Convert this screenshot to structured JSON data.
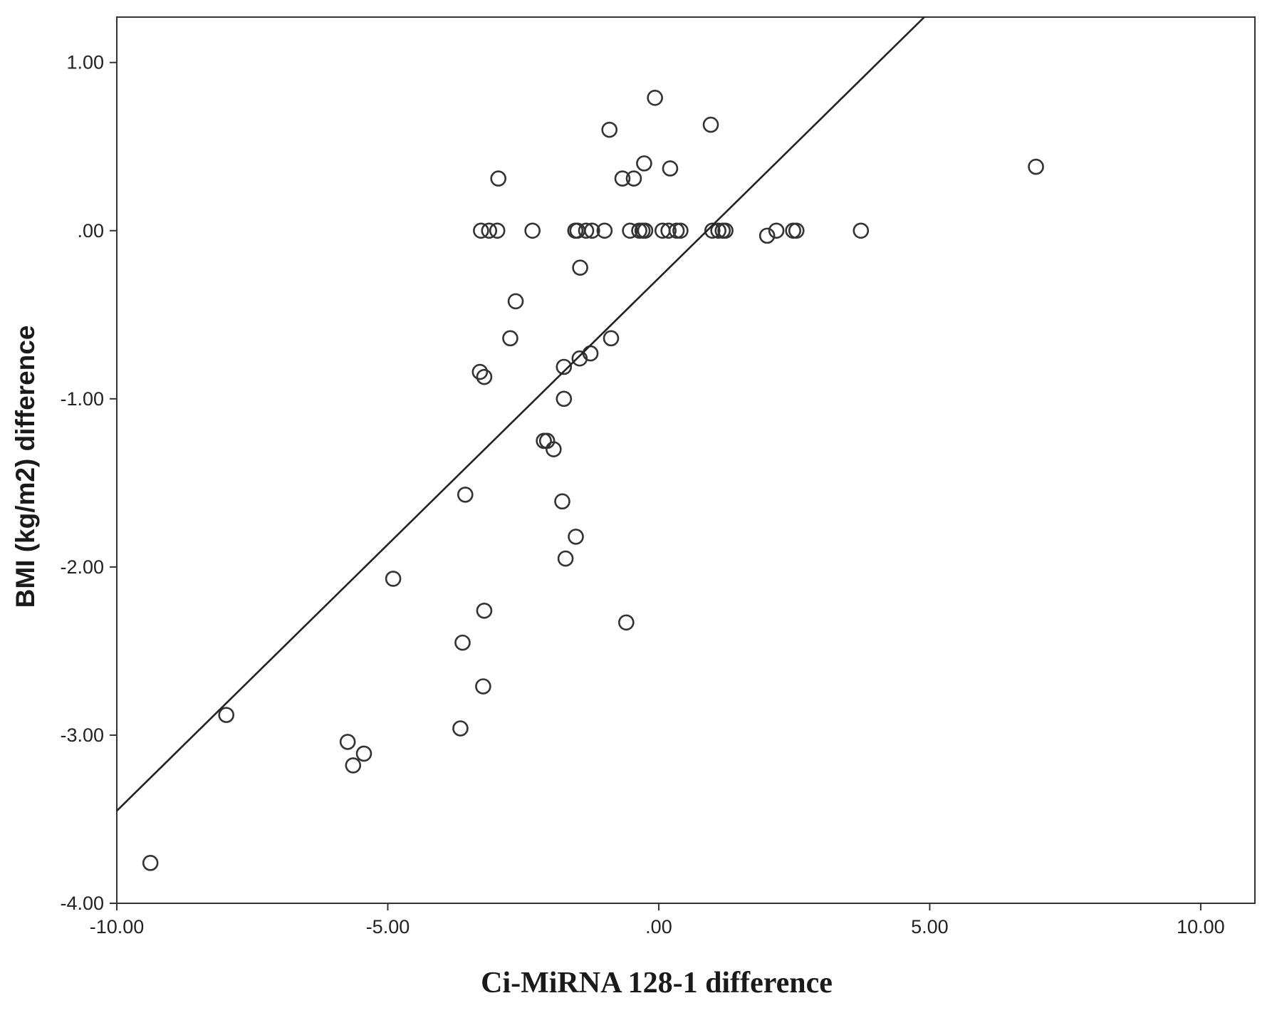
{
  "chart_data": {
    "type": "scatter",
    "title": "",
    "xlabel": "Ci-MiRNA 128-1 difference",
    "ylabel": "BMI (kg/m2) difference",
    "xlim": [
      -10,
      11
    ],
    "ylim": [
      -4,
      1.27
    ],
    "x_ticks": [
      {
        "value": -10,
        "label": "-10.00"
      },
      {
        "value": -5,
        "label": "-5.00"
      },
      {
        "value": 0,
        "label": ".00"
      },
      {
        "value": 5,
        "label": "5.00"
      },
      {
        "value": 10,
        "label": "10.00"
      }
    ],
    "y_ticks": [
      {
        "value": 1,
        "label": "1.00"
      },
      {
        "value": 0,
        "label": ".00"
      },
      {
        "value": -1,
        "label": "-1.00"
      },
      {
        "value": -2,
        "label": "-2.00"
      },
      {
        "value": -3,
        "label": "-3.00"
      },
      {
        "value": -4,
        "label": "-4.00"
      }
    ],
    "grid": false,
    "fit_line": {
      "x": [
        -10,
        4.9
      ],
      "y": [
        -3.45,
        1.27
      ]
    },
    "points": [
      {
        "x": -9.38,
        "y": -3.76
      },
      {
        "x": -7.98,
        "y": -2.88
      },
      {
        "x": -5.74,
        "y": -3.04
      },
      {
        "x": -5.64,
        "y": -3.18
      },
      {
        "x": -5.44,
        "y": -3.11
      },
      {
        "x": -4.9,
        "y": -2.07
      },
      {
        "x": -3.66,
        "y": -2.96
      },
      {
        "x": -3.62,
        "y": -2.45
      },
      {
        "x": -3.57,
        "y": -1.57
      },
      {
        "x": -3.24,
        "y": -2.71
      },
      {
        "x": -3.22,
        "y": -2.26
      },
      {
        "x": -3.3,
        "y": -0.84
      },
      {
        "x": -3.22,
        "y": -0.87
      },
      {
        "x": -3.28,
        "y": 0.0
      },
      {
        "x": -3.13,
        "y": 0.0
      },
      {
        "x": -2.98,
        "y": 0.0
      },
      {
        "x": -2.96,
        "y": 0.31
      },
      {
        "x": -2.74,
        "y": -0.64
      },
      {
        "x": -2.64,
        "y": -0.42
      },
      {
        "x": -2.33,
        "y": 0.0
      },
      {
        "x": -2.12,
        "y": -1.25
      },
      {
        "x": -2.06,
        "y": -1.25
      },
      {
        "x": -1.94,
        "y": -1.3
      },
      {
        "x": -1.78,
        "y": -1.61
      },
      {
        "x": -1.75,
        "y": -0.81
      },
      {
        "x": -1.75,
        "y": -1.0
      },
      {
        "x": -1.72,
        "y": -1.95
      },
      {
        "x": -1.53,
        "y": -1.82
      },
      {
        "x": -1.54,
        "y": 0.0
      },
      {
        "x": -1.5,
        "y": 0.0
      },
      {
        "x": -1.46,
        "y": -0.76
      },
      {
        "x": -1.45,
        "y": -0.22
      },
      {
        "x": -1.34,
        "y": 0.0
      },
      {
        "x": -1.26,
        "y": -0.73
      },
      {
        "x": -1.23,
        "y": 0.0
      },
      {
        "x": -1.0,
        "y": 0.0
      },
      {
        "x": -0.91,
        "y": 0.6
      },
      {
        "x": -0.88,
        "y": -0.64
      },
      {
        "x": -0.67,
        "y": 0.31
      },
      {
        "x": -0.6,
        "y": -2.33
      },
      {
        "x": -0.53,
        "y": 0.0
      },
      {
        "x": -0.46,
        "y": 0.31
      },
      {
        "x": -0.36,
        "y": 0.0
      },
      {
        "x": -0.3,
        "y": 0.0
      },
      {
        "x": -0.27,
        "y": 0.4
      },
      {
        "x": -0.25,
        "y": 0.0
      },
      {
        "x": -0.07,
        "y": 0.79
      },
      {
        "x": 0.07,
        "y": 0.0
      },
      {
        "x": 0.18,
        "y": 0.0
      },
      {
        "x": 0.21,
        "y": 0.37
      },
      {
        "x": 0.33,
        "y": 0.0
      },
      {
        "x": 0.4,
        "y": 0.0
      },
      {
        "x": 0.96,
        "y": 0.63
      },
      {
        "x": 0.99,
        "y": 0.0
      },
      {
        "x": 1.1,
        "y": 0.0
      },
      {
        "x": 1.18,
        "y": 0.0
      },
      {
        "x": 1.23,
        "y": 0.0
      },
      {
        "x": 2.0,
        "y": -0.03
      },
      {
        "x": 2.17,
        "y": 0.0
      },
      {
        "x": 2.48,
        "y": 0.0
      },
      {
        "x": 2.54,
        "y": 0.0
      },
      {
        "x": 3.73,
        "y": 0.0
      },
      {
        "x": 6.96,
        "y": 0.38
      }
    ]
  }
}
